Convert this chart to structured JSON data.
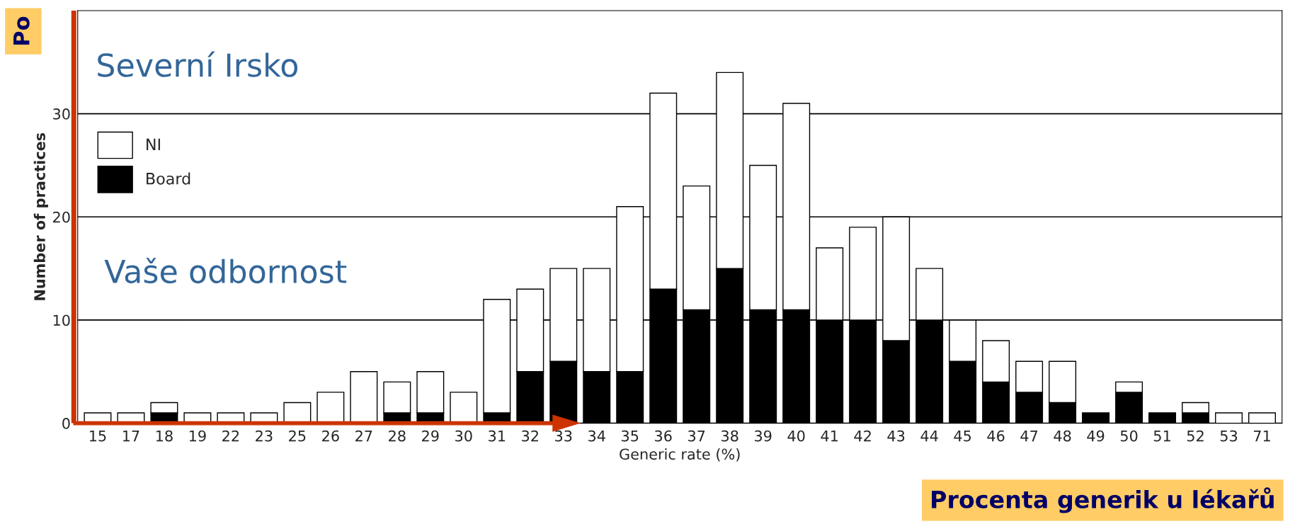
{
  "chart_data": {
    "type": "bar",
    "stacked": true,
    "categories": [
      "15",
      "17",
      "18",
      "19",
      "22",
      "23",
      "25",
      "26",
      "27",
      "28",
      "29",
      "30",
      "31",
      "32",
      "33",
      "34",
      "35",
      "36",
      "37",
      "38",
      "39",
      "40",
      "41",
      "42",
      "43",
      "44",
      "45",
      "46",
      "47",
      "48",
      "49",
      "50",
      "51",
      "52",
      "53",
      "71"
    ],
    "series": [
      {
        "name": "Board",
        "color": "#000000",
        "values": [
          0,
          0,
          1,
          0,
          0,
          0,
          0,
          0,
          0,
          1,
          1,
          0,
          1,
          5,
          6,
          5,
          5,
          13,
          11,
          15,
          11,
          11,
          10,
          10,
          8,
          10,
          6,
          4,
          3,
          2,
          1,
          3,
          1,
          1,
          0,
          0
        ]
      },
      {
        "name": "NI",
        "color": "#ffffff",
        "values": [
          1,
          1,
          1,
          1,
          1,
          1,
          2,
          3,
          5,
          3,
          4,
          3,
          11,
          8,
          9,
          10,
          16,
          19,
          12,
          19,
          14,
          20,
          7,
          9,
          12,
          5,
          4,
          4,
          3,
          4,
          0,
          1,
          0,
          1,
          1,
          1
        ]
      }
    ],
    "ylim": [
      0,
      40
    ],
    "yticks": [
      0,
      10,
      20,
      30
    ],
    "xlabel": "Generic rate (%)",
    "ylabel": "Number of practices",
    "grid": "y",
    "legend": "top left",
    "annotations": [
      "Severní Irsko",
      "Vaše odbornost",
      "Po",
      "Procenta generik u lékařů"
    ]
  }
}
